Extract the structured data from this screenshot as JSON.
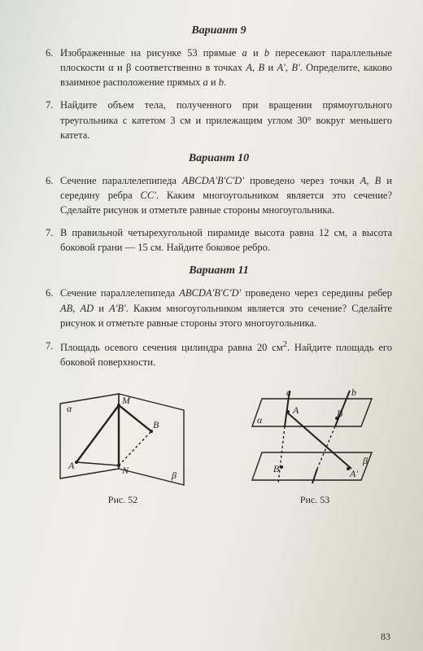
{
  "variants": [
    {
      "title": "Вариант 9",
      "problems": [
        {
          "num": "6.",
          "html": "Изображенные на рисунке 53 прямые <i>a</i> и <i>b</i> пересекают параллельные плоскости α и β соответственно в точках <i>A</i>, <i>B</i> и <i>A'</i>, <i>B'</i>. Определите, каково взаимное расположение прямых <i>a</i> и <i>b</i>."
        },
        {
          "num": "7.",
          "html": "Найдите объем тела, полученного при вращении прямоугольного треугольника с катетом 3 см и прилежащим углом 30° вокруг меньшего катета."
        }
      ]
    },
    {
      "title": "Вариант 10",
      "problems": [
        {
          "num": "6.",
          "html": "Сечение параллелепипеда <i>ABCDA'B'C'D'</i> проведено через точки <i>A</i>, <i>B</i> и середину ребра <i>CC'</i>. Каким многоугольником является это сечение? Сделайте рисунок и отметьте равные стороны многоугольника."
        },
        {
          "num": "7.",
          "html": "В правильной четырехугольной пирамиде высота равна 12 см, а высота боковой грани — 15 см. Найдите боковое ребро."
        }
      ]
    },
    {
      "title": "Вариант 11",
      "problems": [
        {
          "num": "6.",
          "html": "Сечение параллелепипеда <i>ABCDA'B'C'D'</i> проведено через середины ребер <i>AB</i>, <i>AD</i> и <i>A'B'</i>. Каким многоугольником является это сечение? Сделайте рисунок и отметьте равные стороны этого многоугольника."
        },
        {
          "num": "7.",
          "html": "Площадь осевого сечения цилиндра равна 20 см<sup>2</sup>. Найдите площадь его боковой поверхности."
        }
      ]
    }
  ],
  "figures": {
    "left": {
      "caption": "Рис. 52",
      "labels": {
        "alpha": "α",
        "beta": "β",
        "M": "M",
        "N": "N",
        "A": "A",
        "B": "B"
      },
      "stroke": "#222222",
      "fontsize": 12
    },
    "right": {
      "caption": "Рис. 53",
      "labels": {
        "alpha": "α",
        "beta": "β",
        "a": "a",
        "b": "b",
        "A": "A",
        "B": "B",
        "Ap": "A'",
        "Bp": "B'"
      },
      "stroke": "#222222",
      "fontsize": 12
    }
  },
  "page_number": "83"
}
